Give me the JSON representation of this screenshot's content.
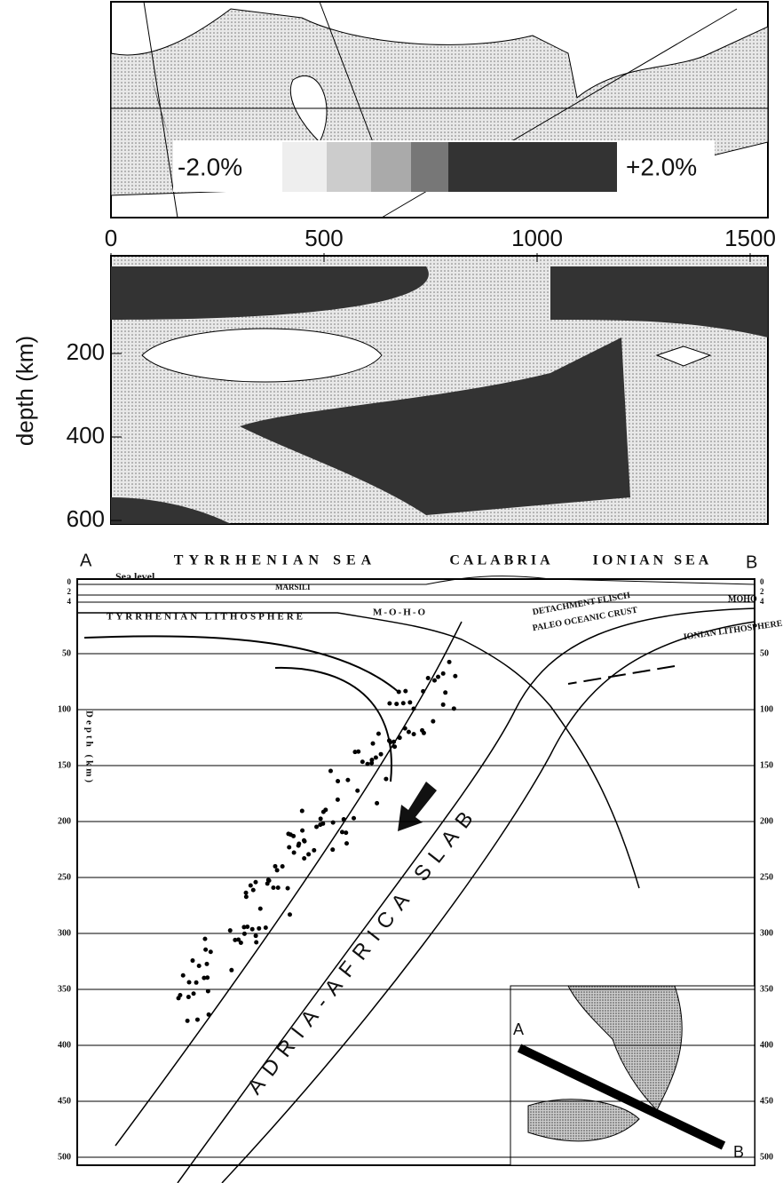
{
  "colorbar": {
    "min_label": "-2.0%",
    "max_label": "+2.0%"
  },
  "tomography": {
    "x_ticks": [
      0,
      500,
      1000,
      1500
    ],
    "y_label": "depth (km)",
    "y_ticks": [
      200,
      400,
      600
    ]
  },
  "section": {
    "left_end": "A",
    "right_end": "B",
    "regions": [
      "TYRRHENIAN SEA",
      "CALABRIA",
      "IONIAN SEA"
    ],
    "sea_level": "Sea level",
    "marsili": "MARSILI",
    "tyrrhenian_lithosphere": "TYRRHENIAN LITHOSPHERE",
    "moho_left": "M-O-H-O",
    "detachment": "DETACHMENT FLISCH",
    "paleo_crust": "PALEO OCEANIC CRUST",
    "moho_right": "MOHO",
    "ionian_lithosphere": "IONIAN LITHOSPHERE",
    "y_label": "Depth (km)",
    "shallow_ticks": [
      0,
      2,
      4
    ],
    "depth_ticks": [
      50,
      100,
      150,
      200,
      250,
      300,
      350,
      400,
      450,
      500
    ],
    "slab": "ADRIA-AFRICA SLAB"
  },
  "inset": {
    "start": "A",
    "end": "B"
  }
}
